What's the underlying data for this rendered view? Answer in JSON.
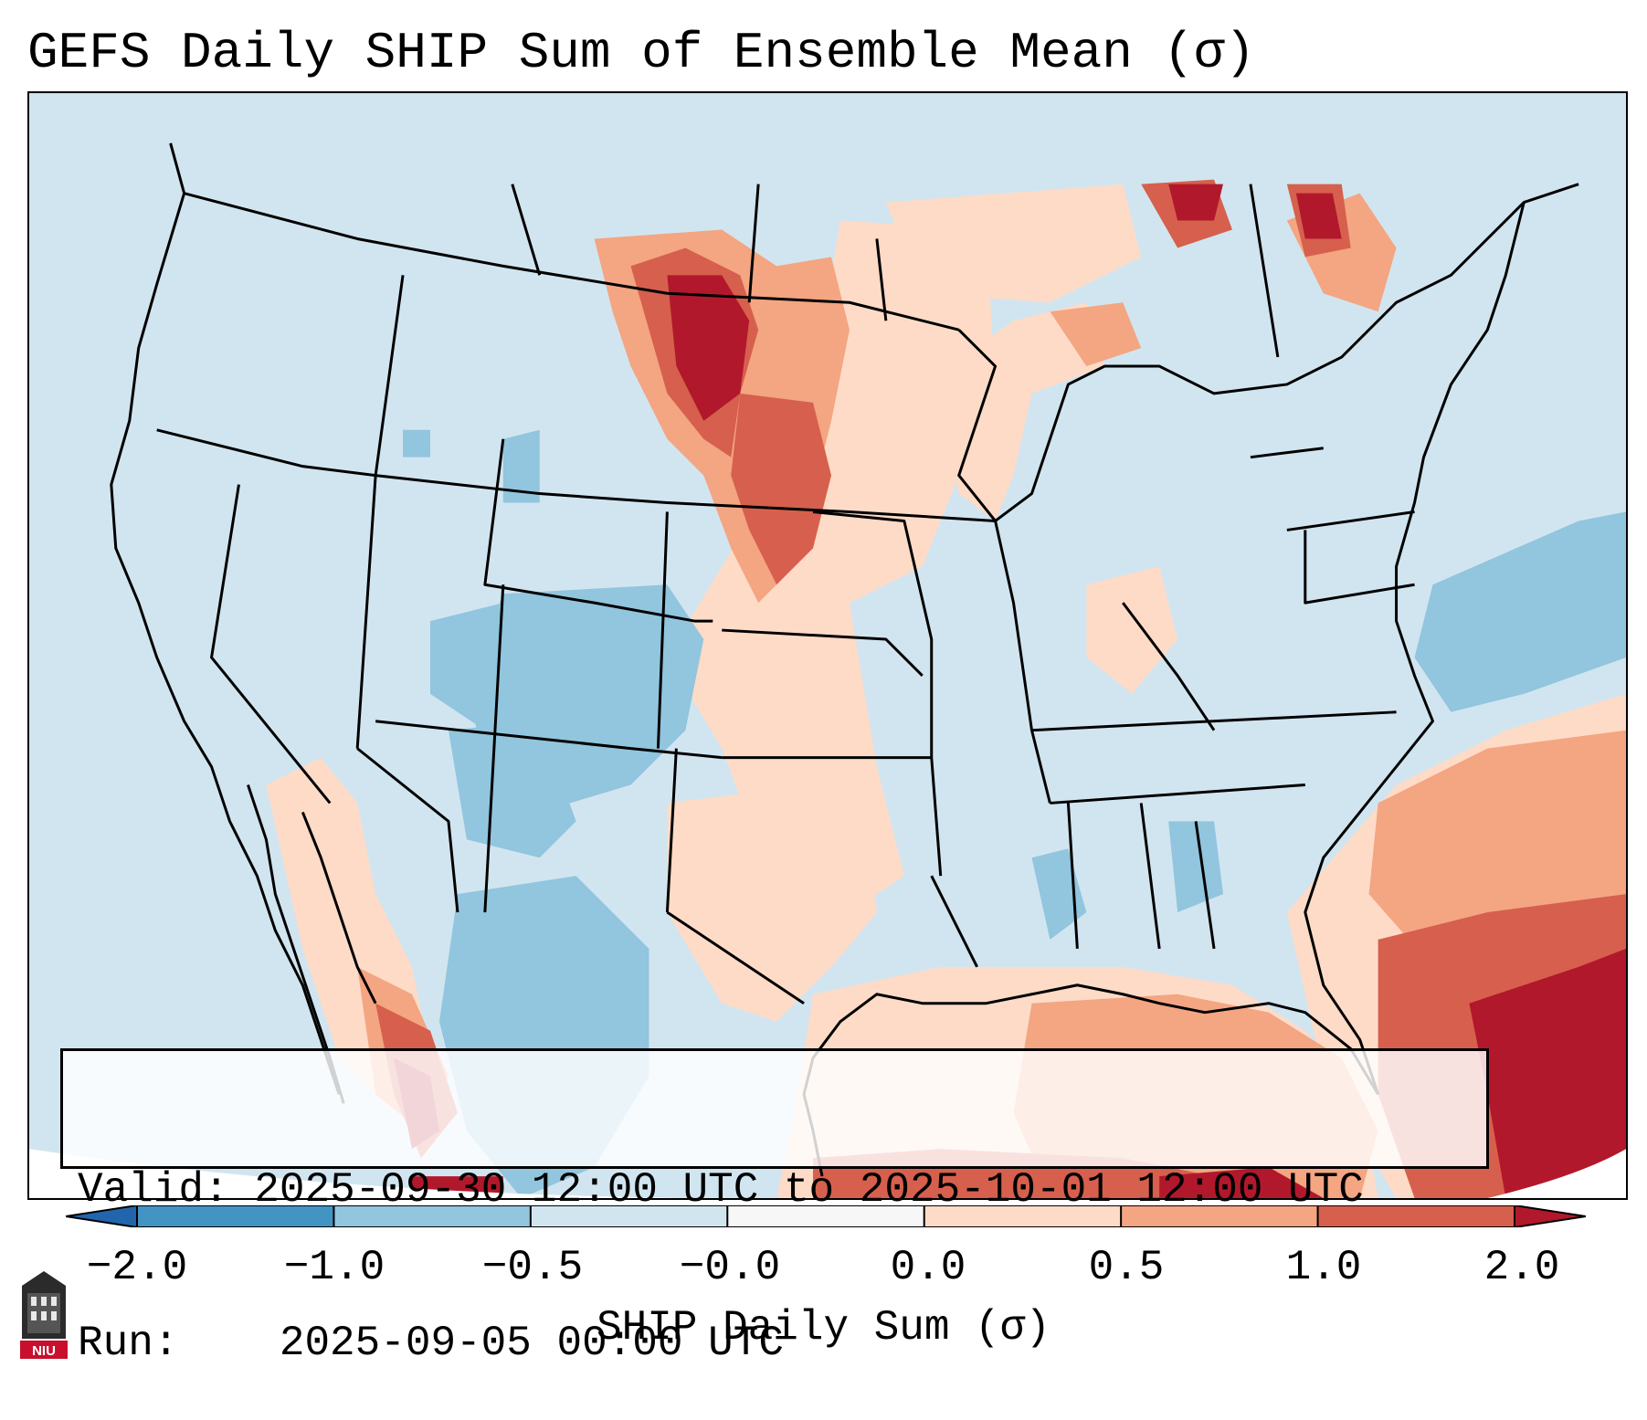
{
  "title": "GEFS Daily SHIP Sum of Ensemble Mean (σ)",
  "info": {
    "valid_label": "Valid:",
    "valid_value": "2025-09-30 12:00 UTC to 2025-10-01 12:00 UTC",
    "run_label": "Run:",
    "run_value": "2025-09-05 00:00 UTC"
  },
  "colorbar": {
    "label": "SHIP Daily Sum (σ)",
    "ticks": [
      "−2.0",
      "−1.0",
      "−0.5",
      "−0.0",
      "0.0",
      "0.5",
      "1.0",
      "2.0"
    ],
    "bins": [
      {
        "range": "< -2.0",
        "color": "#2166ac"
      },
      {
        "range": "-2.0 to -1.0",
        "color": "#4393c3"
      },
      {
        "range": "-1.0 to -0.5",
        "color": "#92c5de"
      },
      {
        "range": "-0.5 to -0.0",
        "color": "#d1e5f0"
      },
      {
        "range": "-0.0 to 0.0",
        "color": "#f7f7f7"
      },
      {
        "range": "0.0 to 0.5",
        "color": "#fddbc7"
      },
      {
        "range": "0.5 to 1.0",
        "color": "#f4a582"
      },
      {
        "range": "1.0 to 2.0",
        "color": "#d6604d"
      },
      {
        "range": "> 2.0",
        "color": "#b2182b"
      }
    ]
  },
  "logo": {
    "text": "NIU",
    "icon": "university-tower-icon"
  }
}
